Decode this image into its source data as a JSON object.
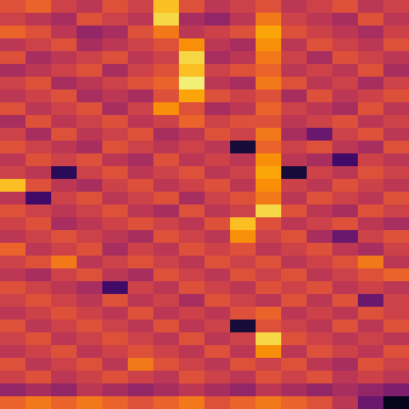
{
  "chart_data": {
    "type": "heatmap",
    "tick_labels": false,
    "zlim": [
      0,
      1
    ],
    "z": [
      [
        0.6,
        0.65,
        0.55,
        0.5,
        0.6,
        0.55,
        0.85,
        0.6,
        0.5,
        0.55,
        0.6,
        0.5,
        0.55,
        0.6,
        0.5,
        0.55
      ],
      [
        0.55,
        0.5,
        0.45,
        0.6,
        0.55,
        0.5,
        0.9,
        0.45,
        0.4,
        0.5,
        0.7,
        0.55,
        0.5,
        0.45,
        0.6,
        0.5
      ],
      [
        0.65,
        0.6,
        0.5,
        0.4,
        0.45,
        0.6,
        0.7,
        0.5,
        0.55,
        0.6,
        0.8,
        0.6,
        0.55,
        0.5,
        0.45,
        0.55
      ],
      [
        0.5,
        0.55,
        0.6,
        0.45,
        0.5,
        0.55,
        0.6,
        0.75,
        0.5,
        0.45,
        0.75,
        0.5,
        0.6,
        0.55,
        0.5,
        0.6
      ],
      [
        0.6,
        0.45,
        0.5,
        0.55,
        0.6,
        0.5,
        0.55,
        0.9,
        0.45,
        0.5,
        0.7,
        0.55,
        0.45,
        0.6,
        0.55,
        0.5
      ],
      [
        0.45,
        0.5,
        0.55,
        0.6,
        0.45,
        0.55,
        0.6,
        0.85,
        0.55,
        0.6,
        0.65,
        0.5,
        0.55,
        0.5,
        0.6,
        0.45
      ],
      [
        0.55,
        0.6,
        0.45,
        0.5,
        0.55,
        0.6,
        0.65,
        0.95,
        0.5,
        0.45,
        0.7,
        0.6,
        0.5,
        0.55,
        0.45,
        0.55
      ],
      [
        0.5,
        0.55,
        0.6,
        0.45,
        0.5,
        0.45,
        0.6,
        0.8,
        0.6,
        0.55,
        0.6,
        0.45,
        0.6,
        0.5,
        0.55,
        0.6
      ],
      [
        0.6,
        0.5,
        0.55,
        0.6,
        0.45,
        0.55,
        0.75,
        0.6,
        0.45,
        0.5,
        0.65,
        0.55,
        0.5,
        0.45,
        0.6,
        0.5
      ],
      [
        0.45,
        0.6,
        0.5,
        0.55,
        0.6,
        0.5,
        0.55,
        0.65,
        0.55,
        0.6,
        0.6,
        0.5,
        0.55,
        0.6,
        0.5,
        0.55
      ],
      [
        0.55,
        0.45,
        0.6,
        0.5,
        0.55,
        0.6,
        0.45,
        0.5,
        0.6,
        0.55,
        0.7,
        0.45,
        0.3,
        0.55,
        0.6,
        0.5
      ],
      [
        0.6,
        0.55,
        0.5,
        0.45,
        0.6,
        0.55,
        0.5,
        0.55,
        0.5,
        0.1,
        0.65,
        0.55,
        0.6,
        0.5,
        0.45,
        0.6
      ],
      [
        0.5,
        0.6,
        0.55,
        0.6,
        0.5,
        0.45,
        0.6,
        0.5,
        0.55,
        0.5,
        0.75,
        0.5,
        0.45,
        0.2,
        0.55,
        0.5
      ],
      [
        0.55,
        0.5,
        0.15,
        0.55,
        0.6,
        0.5,
        0.55,
        0.6,
        0.5,
        0.55,
        0.8,
        0.1,
        0.55,
        0.5,
        0.6,
        0.55
      ],
      [
        0.85,
        0.6,
        0.5,
        0.45,
        0.55,
        0.6,
        0.5,
        0.55,
        0.6,
        0.5,
        0.75,
        0.55,
        0.5,
        0.6,
        0.55,
        0.5
      ],
      [
        0.5,
        0.2,
        0.55,
        0.6,
        0.5,
        0.55,
        0.6,
        0.45,
        0.55,
        0.6,
        0.7,
        0.5,
        0.6,
        0.55,
        0.5,
        0.6
      ],
      [
        0.6,
        0.55,
        0.5,
        0.55,
        0.6,
        0.5,
        0.45,
        0.6,
        0.5,
        0.55,
        0.9,
        0.6,
        0.5,
        0.45,
        0.6,
        0.55
      ],
      [
        0.55,
        0.6,
        0.45,
        0.5,
        0.55,
        0.6,
        0.55,
        0.5,
        0.6,
        0.85,
        0.6,
        0.5,
        0.55,
        0.6,
        0.5,
        0.45
      ],
      [
        0.5,
        0.55,
        0.6,
        0.55,
        0.5,
        0.45,
        0.6,
        0.55,
        0.5,
        0.75,
        0.55,
        0.6,
        0.45,
        0.3,
        0.55,
        0.6
      ],
      [
        0.65,
        0.5,
        0.55,
        0.6,
        0.45,
        0.55,
        0.5,
        0.6,
        0.55,
        0.6,
        0.5,
        0.55,
        0.6,
        0.5,
        0.45,
        0.55
      ],
      [
        0.55,
        0.6,
        0.7,
        0.5,
        0.55,
        0.6,
        0.55,
        0.5,
        0.6,
        0.55,
        0.6,
        0.5,
        0.55,
        0.6,
        0.7,
        0.5
      ],
      [
        0.5,
        0.45,
        0.55,
        0.6,
        0.5,
        0.45,
        0.6,
        0.55,
        0.5,
        0.6,
        0.55,
        0.6,
        0.5,
        0.55,
        0.6,
        0.65
      ],
      [
        0.6,
        0.55,
        0.5,
        0.45,
        0.2,
        0.55,
        0.5,
        0.6,
        0.55,
        0.5,
        0.6,
        0.55,
        0.6,
        0.5,
        0.55,
        0.5
      ],
      [
        0.55,
        0.6,
        0.55,
        0.5,
        0.6,
        0.5,
        0.55,
        0.45,
        0.6,
        0.55,
        0.5,
        0.6,
        0.5,
        0.6,
        0.3,
        0.55
      ],
      [
        0.5,
        0.55,
        0.6,
        0.55,
        0.5,
        0.6,
        0.5,
        0.55,
        0.5,
        0.6,
        0.65,
        0.5,
        0.55,
        0.5,
        0.6,
        0.55
      ],
      [
        0.6,
        0.5,
        0.55,
        0.6,
        0.55,
        0.5,
        0.6,
        0.5,
        0.55,
        0.1,
        0.6,
        0.55,
        0.5,
        0.6,
        0.5,
        0.6
      ],
      [
        0.55,
        0.6,
        0.5,
        0.55,
        0.6,
        0.55,
        0.5,
        0.6,
        0.5,
        0.55,
        0.9,
        0.6,
        0.55,
        0.5,
        0.55,
        0.5
      ],
      [
        0.5,
        0.55,
        0.6,
        0.5,
        0.55,
        0.6,
        0.55,
        0.5,
        0.6,
        0.5,
        0.75,
        0.5,
        0.6,
        0.55,
        0.5,
        0.6
      ],
      [
        0.6,
        0.5,
        0.55,
        0.6,
        0.5,
        0.7,
        0.6,
        0.55,
        0.5,
        0.6,
        0.55,
        0.6,
        0.5,
        0.45,
        0.6,
        0.55
      ],
      [
        0.55,
        0.6,
        0.5,
        0.55,
        0.6,
        0.55,
        0.5,
        0.6,
        0.55,
        0.5,
        0.6,
        0.55,
        0.6,
        0.5,
        0.55,
        0.5
      ],
      [
        0.4,
        0.45,
        0.4,
        0.5,
        0.45,
        0.4,
        0.45,
        0.5,
        0.45,
        0.4,
        0.5,
        0.45,
        0.4,
        0.45,
        0.4,
        0.35
      ],
      [
        0.65,
        0.7,
        0.65,
        0.7,
        0.65,
        0.6,
        0.65,
        0.7,
        0.6,
        0.65,
        0.7,
        0.65,
        0.6,
        0.5,
        0.3,
        0.05
      ]
    ]
  }
}
